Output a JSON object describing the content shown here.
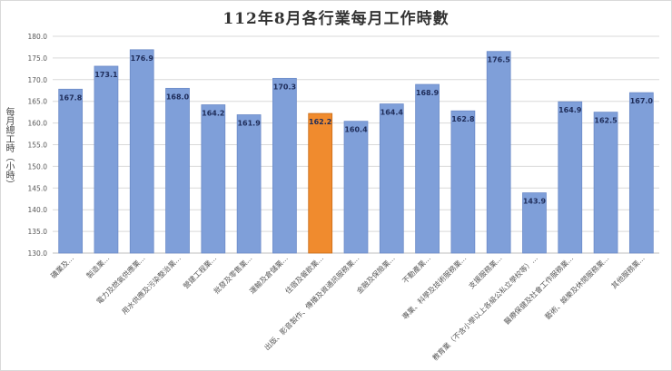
{
  "colors": {
    "bar": "#7f9fd9",
    "bar_highlight": "#f08b2e",
    "grid": "#d9d9d9"
  },
  "chart_data": {
    "type": "bar",
    "title": "112年8月各行業每月工作時數",
    "ylabel": "每月總工時（小時）",
    "xlabel": "",
    "ylim": [
      130,
      180
    ],
    "yticks": [
      "130.0",
      "135.0",
      "140.0",
      "145.0",
      "150.0",
      "155.0",
      "160.0",
      "165.0",
      "170.0",
      "175.0",
      "180.0"
    ],
    "grid": true,
    "highlight_index": 7,
    "categories": [
      "礦業及...",
      "製造業...",
      "電力及燃氣供應業...",
      "用水供應及污染整治業...",
      "營建工程業...",
      "批發及零售業...",
      "運輸及倉儲業...",
      "住宿及餐飲業...",
      "出版、影音製作、傳播及資通訊服務業...",
      "金融及保險業...",
      "不動產業...",
      "專業、科學及技術服務業...",
      "支援服務業...",
      "教育業（不含小學以上各級公私立學校等）...",
      "醫療保健及社會工作服務業...",
      "藝術、娛樂及休閒服務業...",
      "其他服務業..."
    ],
    "values": [
      167.8,
      173.1,
      176.9,
      168.0,
      164.2,
      161.9,
      170.3,
      162.2,
      160.4,
      164.4,
      168.9,
      162.8,
      176.5,
      143.9,
      164.9,
      162.5,
      167.0
    ],
    "data_labels": [
      "167.8",
      "173.1",
      "176.9",
      "168.0",
      "164.2",
      "161.9",
      "170.3",
      "162.2",
      "160.4",
      "164.4",
      "168.9",
      "162.8",
      "176.5",
      "143.9",
      "164.9",
      "162.5",
      "167.0"
    ]
  }
}
